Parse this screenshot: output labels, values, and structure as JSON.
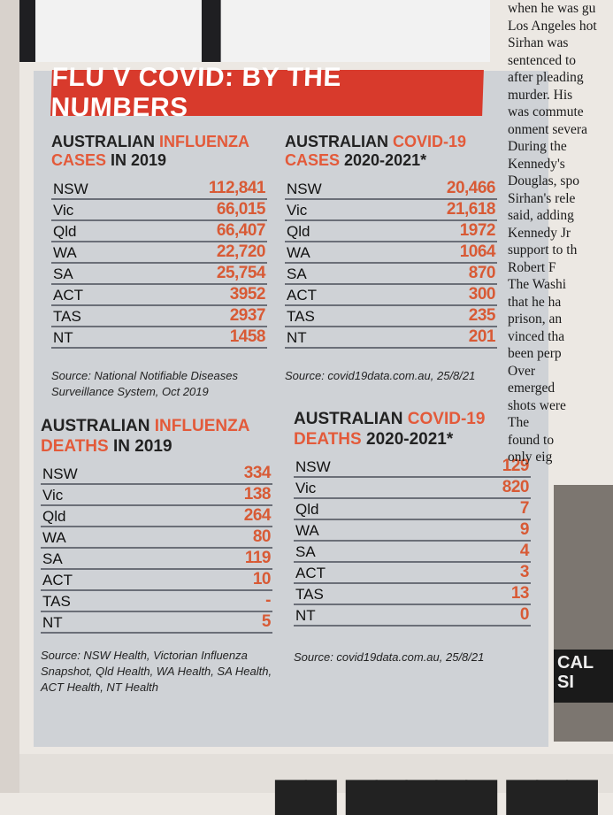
{
  "banner": "FLU V COVID: BY THE NUMBERS",
  "tables": {
    "flu_cases": {
      "title_prefix": "AUSTRALIAN ",
      "title_highlight": "INFLUENZA CASES",
      "title_suffix": " IN 2019",
      "rows": [
        {
          "state": "NSW",
          "value": "112,841"
        },
        {
          "state": "Vic",
          "value": "66,015"
        },
        {
          "state": "Qld",
          "value": "66,407"
        },
        {
          "state": "WA",
          "value": "22,720"
        },
        {
          "state": "SA",
          "value": "25,754"
        },
        {
          "state": "ACT",
          "value": "3952"
        },
        {
          "state": "TAS",
          "value": "2937"
        },
        {
          "state": "NT",
          "value": "1458"
        }
      ],
      "source": "Source: National Notifiable Diseases Surveillance System, Oct 2019"
    },
    "covid_cases": {
      "title_prefix": "AUSTRALIAN ",
      "title_highlight": "COVID-19 CASES",
      "title_suffix": " 2020-2021*",
      "rows": [
        {
          "state": "NSW",
          "value": "20,466"
        },
        {
          "state": "Vic",
          "value": "21,618"
        },
        {
          "state": "Qld",
          "value": "1972"
        },
        {
          "state": "WA",
          "value": "1064"
        },
        {
          "state": "SA",
          "value": "870"
        },
        {
          "state": "ACT",
          "value": "300"
        },
        {
          "state": "TAS",
          "value": "235"
        },
        {
          "state": "NT",
          "value": "201"
        }
      ],
      "source": "Source: covid19data.com.au, 25/8/21"
    },
    "flu_deaths": {
      "title_prefix": "AUSTRALIAN ",
      "title_highlight": "INFLUENZA DEATHS",
      "title_suffix": " IN 2019",
      "rows": [
        {
          "state": "NSW",
          "value": "334"
        },
        {
          "state": "Vic",
          "value": "138"
        },
        {
          "state": "Qld",
          "value": "264"
        },
        {
          "state": "WA",
          "value": "80"
        },
        {
          "state": "SA",
          "value": "119"
        },
        {
          "state": "ACT",
          "value": "10"
        },
        {
          "state": "TAS",
          "value": "-"
        },
        {
          "state": "NT",
          "value": "5"
        }
      ],
      "source": "Source: NSW Health, Victorian Influenza Snapshot, Qld Health, WA Health, SA Health, ACT Health, NT Health"
    },
    "covid_deaths": {
      "title_prefix": "AUSTRALIAN ",
      "title_highlight": "COVID-19 DEATHS",
      "title_suffix": " 2020-2021*",
      "rows": [
        {
          "state": "NSW",
          "value": "129"
        },
        {
          "state": "Vic",
          "value": "820"
        },
        {
          "state": "Qld",
          "value": "7"
        },
        {
          "state": "WA",
          "value": "9"
        },
        {
          "state": "SA",
          "value": "4"
        },
        {
          "state": "ACT",
          "value": "3"
        },
        {
          "state": "TAS",
          "value": "13"
        },
        {
          "state": "NT",
          "value": "0"
        }
      ],
      "source": "Source: covid19data.com.au, 25/8/21"
    }
  },
  "right_column": [
    "when he was gu",
    "Los Angeles hot",
    "Sirhan was",
    "sentenced to",
    "after pleading",
    "murder. His",
    "was commute",
    "onment severa",
    "During the",
    "Kennedy's",
    "Douglas, spo",
    "Sirhan's rele",
    "said, adding",
    "Kennedy Jr",
    "support to th",
    "Robert F",
    "The Washi",
    "that he ha",
    "prison, an",
    "vinced tha",
    "been perp",
    "Over",
    "emerged",
    "shots were",
    "The",
    "found to",
    "only eig"
  ],
  "right_image_label": "CAL SI",
  "colors": {
    "highlight": "#e35a3a",
    "banner": "#d83a2c",
    "panel": "#cfd2d6"
  }
}
